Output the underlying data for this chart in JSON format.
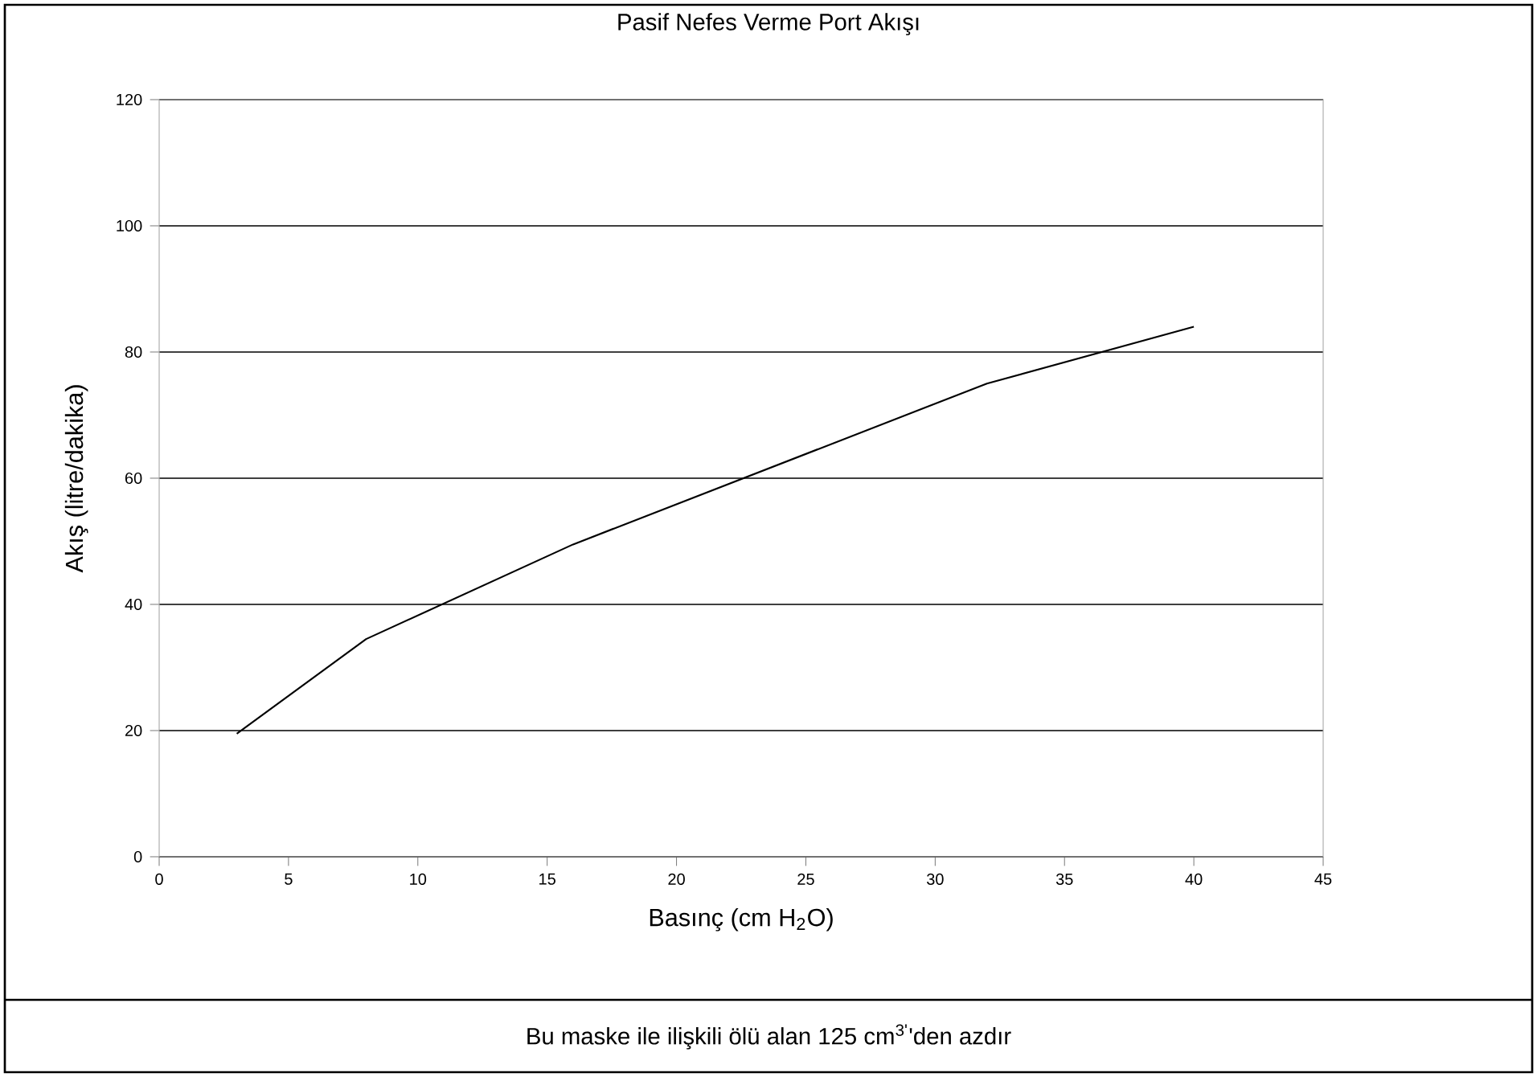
{
  "chart_data": {
    "type": "line",
    "title": "Pasif Nefes Verme Port Akışı",
    "xlabel": "Basınç (cm H$_{2}$O)",
    "ylabel": "Akış (litre/dakika)",
    "annotations": [
      "Bu maske ile ilişkili ölü alan 125 cm$^{3'}$'den azdır"
    ],
    "x": [
      3,
      8,
      16,
      32,
      40
    ],
    "series": [
      {
        "color": "#000000",
        "values": [
          19.5,
          34.5,
          49.5,
          75,
          84
        ]
      }
    ],
    "xlim": [
      0,
      45
    ],
    "xticks": [
      0,
      5,
      10,
      15,
      20,
      25,
      30,
      35,
      40,
      45
    ],
    "ylim": [
      0,
      120
    ],
    "yticks": [
      0,
      20,
      40,
      60,
      80,
      100,
      120
    ],
    "grid": "y",
    "marker": "none",
    "line_style": "solid"
  }
}
